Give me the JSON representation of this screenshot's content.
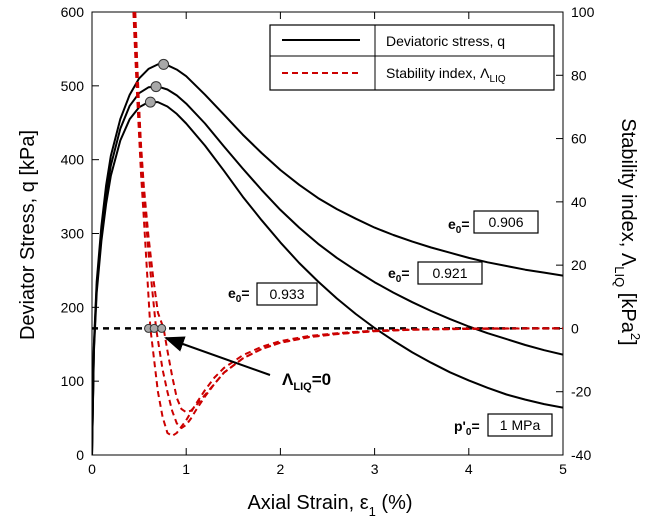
{
  "chart_data": {
    "type": "line",
    "xlabel": "Axial Strain, ε",
    "xlabel_sub": "1",
    "xlabel_suffix": " (%)",
    "ylabel": "Deviator Stress, q [kPa]",
    "y2label": "Stability index, Λ",
    "y2label_sub": "LIQ",
    "y2label_suffix": " [kPa",
    "y2label_sup": "2",
    "y2label_end": "]",
    "xlim": [
      0,
      5
    ],
    "ylim": [
      0,
      600
    ],
    "y2lim": [
      -40,
      100
    ],
    "xticks": [
      "0",
      "1",
      "2",
      "3",
      "4",
      "5"
    ],
    "yticks": [
      "0",
      "100",
      "200",
      "300",
      "400",
      "500",
      "600"
    ],
    "y2ticks": [
      "-40",
      "-20",
      "0",
      "20",
      "40",
      "60",
      "80",
      "100"
    ],
    "legend": {
      "placement": "top-right",
      "entries": [
        {
          "label": "Deviatoric stress, q",
          "style": "solid",
          "color": "#000000"
        },
        {
          "label": "Stability index, Λ",
          "label_sub": "LIQ",
          "style": "dashed",
          "color": "#cc0000"
        }
      ]
    },
    "stress_series": [
      {
        "e0": "0.906",
        "x": [
          0,
          0.02,
          0.05,
          0.1,
          0.15,
          0.2,
          0.3,
          0.4,
          0.5,
          0.6,
          0.7,
          0.8,
          0.9,
          1.0,
          1.2,
          1.4,
          1.6,
          1.8,
          2.0,
          2.2,
          2.4,
          2.6,
          2.8,
          3.0,
          3.2,
          3.4,
          3.6,
          3.8,
          4.0,
          4.2,
          4.4,
          4.6,
          4.8,
          5.0
        ],
        "y": [
          0,
          150,
          235,
          310,
          365,
          405,
          455,
          488,
          510,
          523,
          529,
          528,
          522,
          513,
          488,
          461,
          434,
          409,
          386,
          366,
          348,
          333,
          320,
          308,
          298,
          289,
          281,
          274,
          267,
          261,
          256,
          251,
          247,
          243
        ]
      },
      {
        "e0": "0.921",
        "x": [
          0,
          0.02,
          0.05,
          0.1,
          0.15,
          0.2,
          0.3,
          0.4,
          0.5,
          0.6,
          0.7,
          0.8,
          0.9,
          1.0,
          1.2,
          1.4,
          1.6,
          1.8,
          2.0,
          2.2,
          2.4,
          2.6,
          2.8,
          3.0,
          3.2,
          3.4,
          3.6,
          3.8,
          4.0,
          4.2,
          4.4,
          4.6,
          4.8,
          5.0
        ],
        "y": [
          0,
          145,
          228,
          300,
          352,
          392,
          442,
          473,
          490,
          498,
          499,
          495,
          487,
          476,
          449,
          418,
          388,
          359,
          332,
          308,
          286,
          267,
          250,
          234,
          220,
          207,
          195,
          184,
          174,
          165,
          157,
          149,
          142,
          136
        ]
      },
      {
        "e0": "0.933",
        "x": [
          0,
          0.02,
          0.05,
          0.1,
          0.15,
          0.2,
          0.3,
          0.4,
          0.5,
          0.6,
          0.7,
          0.8,
          0.9,
          1.0,
          1.2,
          1.4,
          1.6,
          1.8,
          2.0,
          2.2,
          2.4,
          2.6,
          2.8,
          3.0,
          3.2,
          3.4,
          3.6,
          3.8,
          4.0,
          4.2,
          4.4,
          4.6,
          4.8,
          5.0
        ],
        "y": [
          0,
          140,
          220,
          290,
          340,
          378,
          426,
          455,
          471,
          478,
          478,
          472,
          462,
          449,
          419,
          385,
          350,
          318,
          288,
          260,
          235,
          212,
          191,
          172,
          155,
          139,
          125,
          112,
          101,
          91,
          82,
          75,
          69,
          64
        ]
      }
    ],
    "peak_markers": [
      {
        "x": 0.76,
        "y": 529
      },
      {
        "x": 0.68,
        "y": 499
      },
      {
        "x": 0.62,
        "y": 478
      }
    ],
    "stability_series": [
      {
        "x": [
          0.46,
          0.48,
          0.5,
          0.52,
          0.55,
          0.6,
          0.65,
          0.7,
          0.76,
          0.8,
          0.85,
          0.9,
          0.95,
          1.0,
          1.05,
          1.1,
          1.2,
          1.3,
          1.4,
          1.6,
          1.8,
          2.0,
          2.3,
          2.6,
          3.0,
          3.4,
          3.8,
          4.2,
          4.6,
          5.0
        ],
        "y": [
          100,
          84,
          70,
          58,
          45,
          29,
          16,
          5,
          0,
          -7,
          -15,
          -22,
          -25.5,
          -26.5,
          -26,
          -24.5,
          -21,
          -17.5,
          -14,
          -9.5,
          -6.5,
          -4.5,
          -2.8,
          -1.8,
          -0.9,
          -0.4,
          -0.2,
          -0.1,
          0,
          0
        ]
      },
      {
        "x": [
          0.45,
          0.47,
          0.5,
          0.52,
          0.55,
          0.6,
          0.68,
          0.75,
          0.8,
          0.85,
          0.9,
          0.95,
          1.0,
          1.05,
          1.1,
          1.2,
          1.3,
          1.4,
          1.6,
          1.8,
          2.0,
          2.3,
          2.6,
          3.0,
          3.4,
          3.8,
          4.2,
          4.6,
          5.0
        ],
        "y": [
          100,
          87,
          69,
          57,
          43,
          24,
          0,
          -13,
          -20,
          -26,
          -30,
          -31.5,
          -30.5,
          -28.5,
          -26,
          -21.5,
          -17.5,
          -14,
          -9.5,
          -6.5,
          -4.5,
          -2.7,
          -1.7,
          -0.8,
          -0.4,
          -0.2,
          -0.1,
          0,
          0
        ]
      },
      {
        "x": [
          0.44,
          0.46,
          0.48,
          0.5,
          0.52,
          0.55,
          0.62,
          0.7,
          0.75,
          0.8,
          0.85,
          0.9,
          0.95,
          1.0,
          1.05,
          1.1,
          1.2,
          1.3,
          1.4,
          1.6,
          1.8,
          2.0,
          2.3,
          2.6,
          3.0,
          3.4,
          3.8,
          4.2,
          4.6,
          5.0
        ],
        "y": [
          100,
          86,
          73,
          61,
          49,
          35,
          0,
          -20,
          -28,
          -33,
          -34,
          -33,
          -31,
          -29,
          -26.5,
          -24,
          -19.5,
          -15.5,
          -12.5,
          -8.5,
          -5.8,
          -4,
          -2.4,
          -1.5,
          -0.7,
          -0.3,
          -0.1,
          0,
          0,
          0
        ]
      }
    ],
    "zero_markers": [
      0.6,
      0.66,
      0.74
    ],
    "labels": {
      "e0_prefix": "e",
      "e0_sub": "0",
      "e0_eq": "=",
      "e0_values": [
        "0.906",
        "0.921",
        "0.933"
      ],
      "lambda_symbol": "Λ",
      "lambda_sub": "LIQ",
      "lambda_eq": "=0",
      "p0_prefix": "p'",
      "p0_sub": "0",
      "p0_eq": "=",
      "p0_value": "1 MPa"
    }
  }
}
